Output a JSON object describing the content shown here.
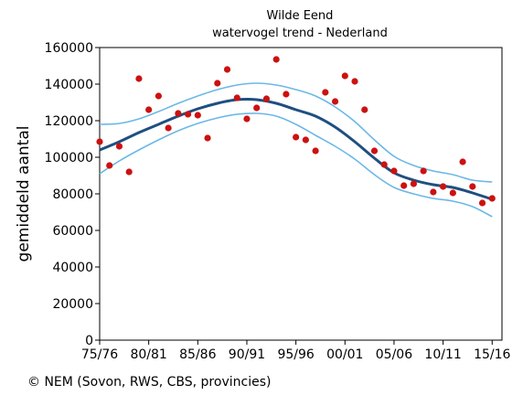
{
  "chart_data": {
    "type": "scatter",
    "title": "Wilde Eend",
    "subtitle": "watervogel trend - Nederland",
    "xlabel": "",
    "ylabel": "gemiddeld aantal",
    "ylim": [
      0,
      160000
    ],
    "yticks": [
      0,
      20000,
      40000,
      60000,
      80000,
      100000,
      120000,
      140000,
      160000
    ],
    "xlim": [
      1975,
      2016
    ],
    "xtick_positions": [
      1975,
      1980,
      1985,
      1990,
      1995,
      2000,
      2005,
      2010,
      2015
    ],
    "xtick_labels": [
      "75/76",
      "80/81",
      "85/86",
      "90/91",
      "95/96",
      "00/01",
      "05/06",
      "10/11",
      "15/16"
    ],
    "grid": false,
    "legend": "none",
    "colors": {
      "points": "#cc1111",
      "trend": "#1f4f80",
      "band": "#6bb8e6"
    },
    "series": [
      {
        "kind": "points",
        "x": [
          1975,
          1976,
          1977,
          1978,
          1979,
          1980,
          1981,
          1982,
          1983,
          1984,
          1985,
          1986,
          1987,
          1988,
          1989,
          1990,
          1991,
          1992,
          1993,
          1994,
          1995,
          1996,
          1997,
          1998,
          1999,
          2000,
          2001,
          2002,
          2003,
          2004,
          2005,
          2006,
          2007,
          2008,
          2009,
          2010,
          2011,
          2012,
          2013,
          2014,
          2015
        ],
        "y": [
          108500,
          95500,
          106000,
          92000,
          143000,
          126000,
          133500,
          116000,
          124000,
          123500,
          123000,
          110500,
          140500,
          148000,
          132500,
          121000,
          127000,
          132000,
          153500,
          134500,
          111000,
          109500,
          103500,
          135500,
          130500,
          144500,
          141500,
          126000,
          103500,
          96000,
          92500,
          84500,
          85500,
          92500,
          81000,
          84000,
          80500,
          97500,
          84000,
          75000,
          77500
        ]
      },
      {
        "kind": "trend",
        "x": [
          1975,
          1977,
          1979,
          1981,
          1983,
          1985,
          1987,
          1989,
          1991,
          1993,
          1995,
          1997,
          1999,
          2001,
          2003,
          2005,
          2007,
          2009,
          2011,
          2013,
          2015
        ],
        "y": [
          104000,
          108500,
          113500,
          118000,
          122500,
          126500,
          129500,
          131500,
          131500,
          129500,
          126000,
          122500,
          116500,
          108500,
          99500,
          91500,
          87500,
          85000,
          83500,
          80500,
          77000
        ]
      },
      {
        "kind": "upper",
        "x": [
          1975,
          1977,
          1979,
          1981,
          1983,
          1985,
          1987,
          1989,
          1991,
          1993,
          1995,
          1997,
          1999,
          2001,
          2003,
          2005,
          2007,
          2009,
          2011,
          2013,
          2015
        ],
        "y": [
          118000,
          118500,
          121000,
          125000,
          129500,
          133500,
          137000,
          139500,
          140500,
          139500,
          137000,
          133500,
          127500,
          119500,
          109500,
          100500,
          95500,
          92500,
          90500,
          87500,
          86500
        ]
      },
      {
        "kind": "lower",
        "x": [
          1975,
          1977,
          1979,
          1981,
          1983,
          1985,
          1987,
          1989,
          1991,
          1993,
          1995,
          1997,
          1999,
          2001,
          2003,
          2005,
          2007,
          2009,
          2011,
          2013,
          2015
        ],
        "y": [
          91000,
          98000,
          104000,
          109500,
          114500,
          118500,
          121500,
          123500,
          124000,
          122500,
          118000,
          112000,
          106000,
          99000,
          90500,
          83500,
          80000,
          77500,
          76000,
          73000,
          67500
        ]
      }
    ]
  },
  "credit": "© NEM (Sovon, RWS, CBS, provincies)"
}
